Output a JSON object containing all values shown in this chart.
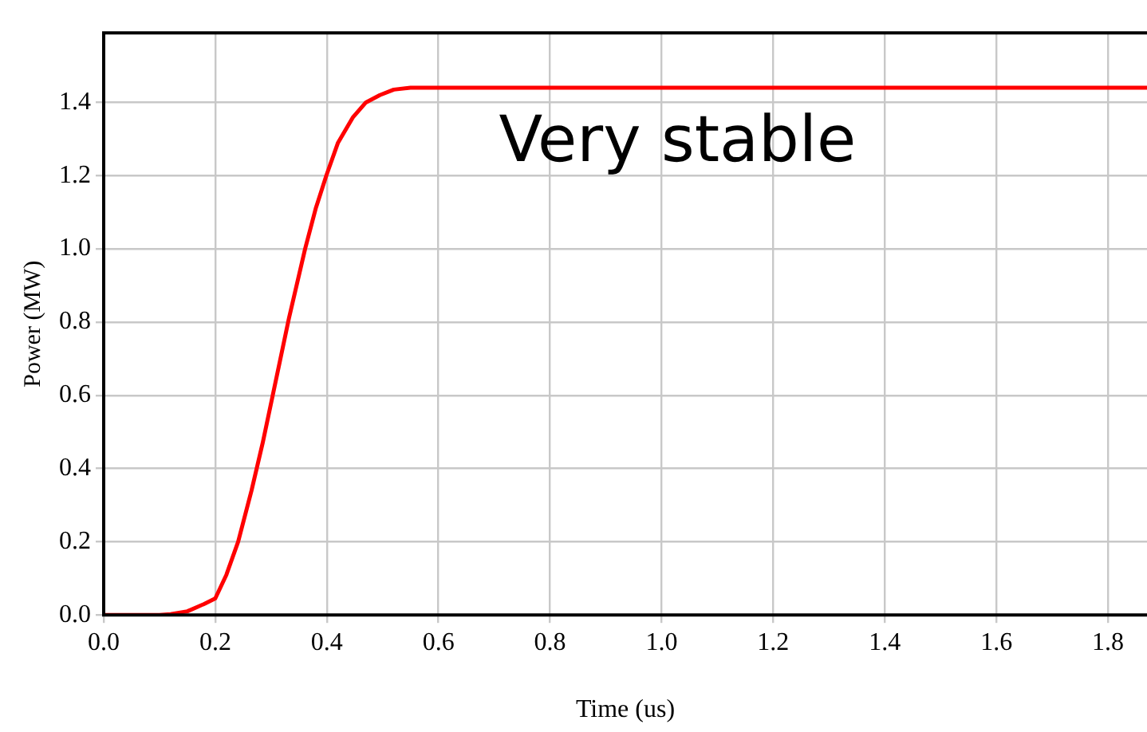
{
  "chart_data": {
    "type": "line",
    "xlabel": "Time (us)",
    "ylabel": "Power (MW)",
    "x": [
      0,
      0.05,
      0.1,
      0.12,
      0.15,
      0.18,
      0.2,
      0.22,
      0.241,
      0.265,
      0.285,
      0.303,
      0.332,
      0.361,
      0.38,
      0.399,
      0.42,
      0.447,
      0.47,
      0.495,
      0.52,
      0.55,
      0.64,
      0.73,
      1.0,
      1.4,
      1.87
    ],
    "series": [
      {
        "color": "#ff0000",
        "values": [
          0,
          0,
          0,
          0.002,
          0.01,
          0.03,
          0.045,
          0.11,
          0.2,
          0.34,
          0.47,
          0.6,
          0.81,
          1.0,
          1.11,
          1.2,
          1.29,
          1.36,
          1.4,
          1.42,
          1.435,
          1.44,
          1.44,
          1.44,
          1.44,
          1.44,
          1.44
        ]
      }
    ],
    "xlim": [
      0,
      1.87
    ],
    "ylim": [
      0,
      1.59
    ],
    "xticks": [
      {
        "value": 0,
        "label": "0.0"
      },
      0.2,
      0.4,
      0.6,
      0.8,
      {
        "value": 1,
        "label": "1.0"
      },
      1.2,
      1.4,
      1.6,
      1.8
    ],
    "yticks": [
      {
        "value": 0,
        "label": "0.0"
      },
      0.2,
      0.4,
      0.6,
      0.8,
      {
        "value": 1,
        "label": "1.0"
      },
      1.2,
      1.4
    ],
    "grid": true,
    "legend": false,
    "marker": "none",
    "line_style": "solid",
    "annotations": [
      "Very stable"
    ]
  }
}
